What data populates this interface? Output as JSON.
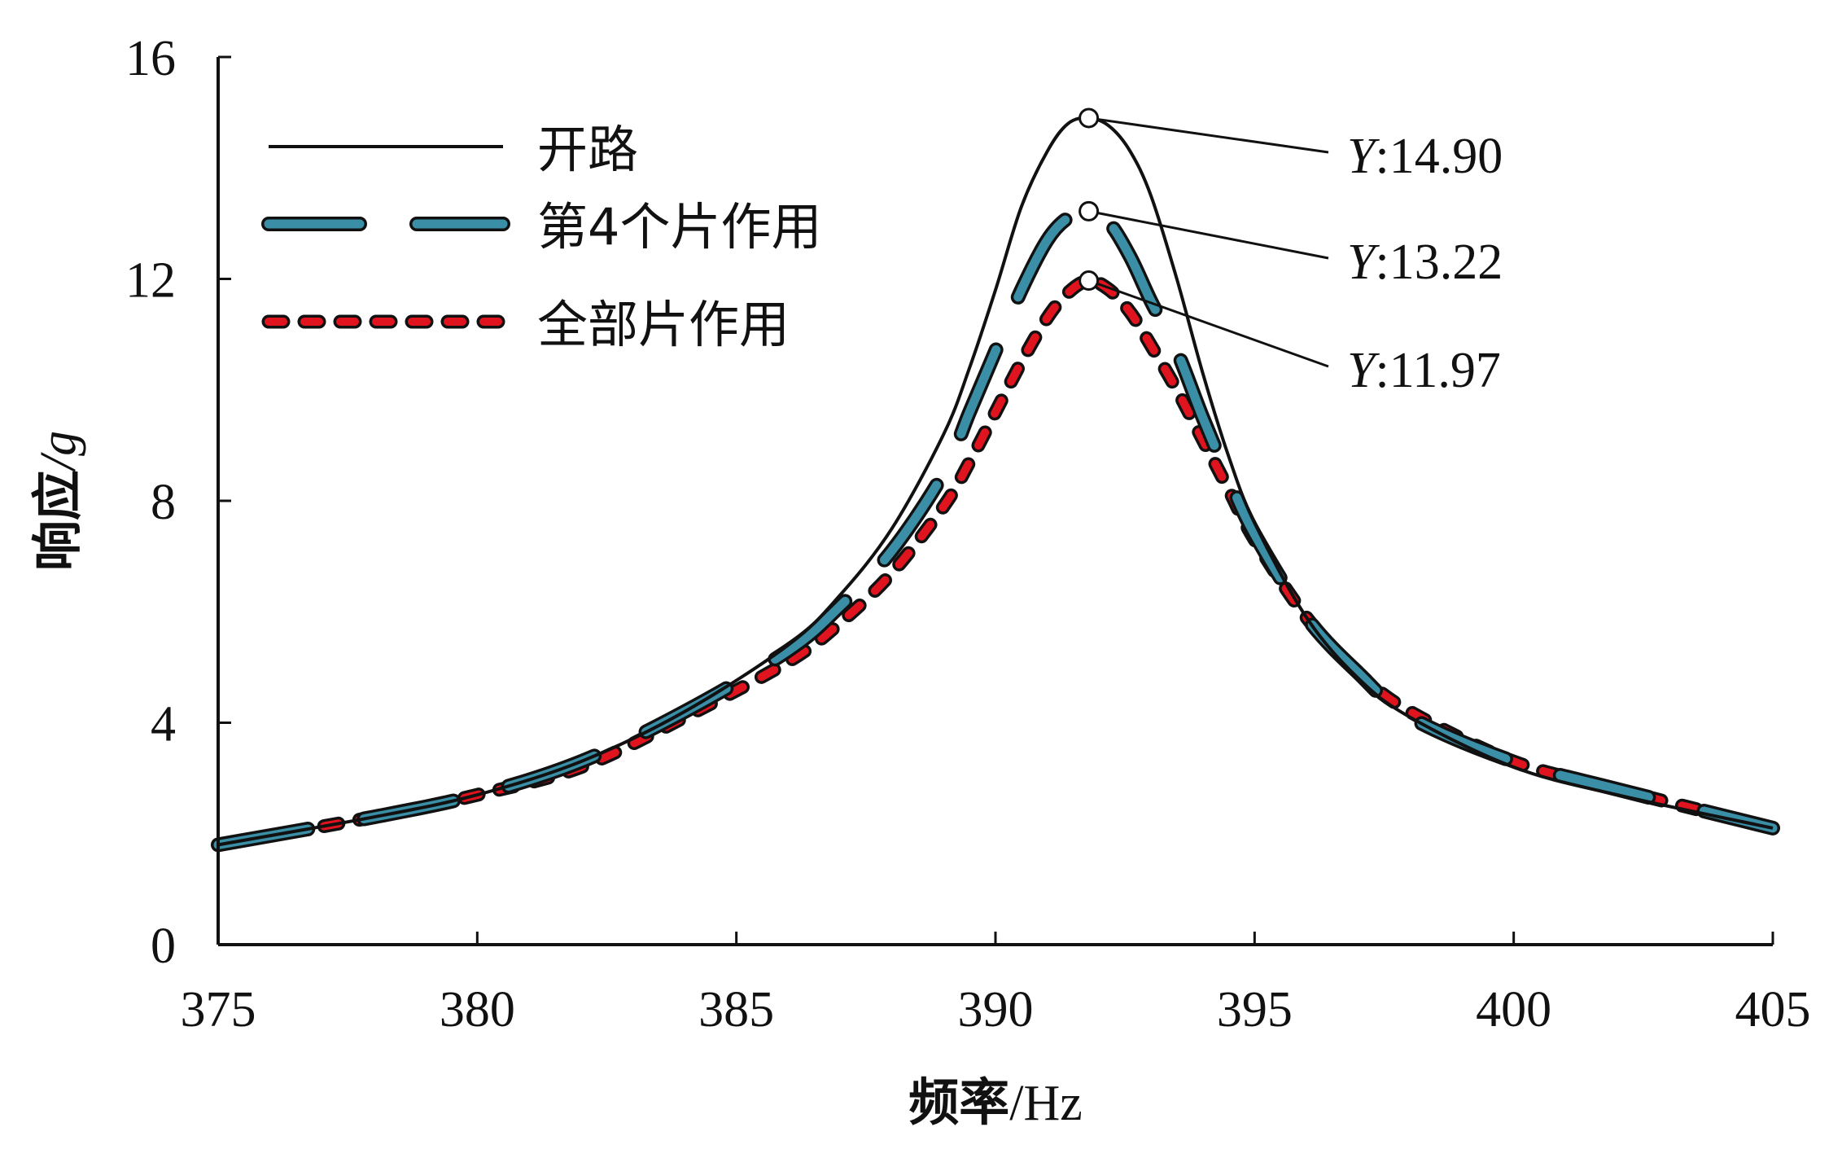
{
  "chart_data": {
    "type": "line",
    "xlabel": {
      "main": "频率",
      "unit": "/Hz"
    },
    "ylabel": {
      "main": "响应",
      "unit": "/g"
    },
    "xlim": [
      375,
      405
    ],
    "ylim": [
      0,
      16
    ],
    "xticks": [
      "375",
      "380",
      "385",
      "390",
      "395",
      "400",
      "405"
    ],
    "yticks": [
      "0",
      "4",
      "8",
      "12",
      "16"
    ],
    "grid": false,
    "legend_position": "top-left",
    "series": [
      {
        "name": "开路",
        "style": "solid-thin",
        "color": "#111111",
        "x": [
          375,
          378,
          380,
          382,
          384,
          386,
          387,
          388,
          389,
          389.5,
          390,
          390.5,
          391,
          391.4,
          391.8,
          392.2,
          392.6,
          393,
          393.5,
          394,
          394.5,
          395,
          396,
          397,
          398,
          400,
          402,
          405
        ],
        "y": [
          1.8,
          2.3,
          2.7,
          3.3,
          4.2,
          5.4,
          6.3,
          7.5,
          9.2,
          10.4,
          11.8,
          13.3,
          14.3,
          14.8,
          14.9,
          14.75,
          14.3,
          13.5,
          12.0,
          10.3,
          8.8,
          7.6,
          5.9,
          4.8,
          4.1,
          3.2,
          2.7,
          2.1
        ]
      },
      {
        "name": "第4个片作用",
        "style": "long-dash",
        "color": "#3a8ea5",
        "x": [
          375,
          378,
          380,
          382,
          384,
          386,
          387,
          388,
          389,
          389.5,
          390,
          390.5,
          391,
          391.4,
          391.8,
          392.2,
          392.6,
          393,
          393.5,
          394,
          394.5,
          395,
          396,
          397,
          398,
          400,
          402,
          405
        ],
        "y": [
          1.8,
          2.3,
          2.7,
          3.3,
          4.2,
          5.3,
          6.1,
          7.1,
          8.5,
          9.6,
          10.7,
          11.8,
          12.7,
          13.1,
          13.22,
          13.0,
          12.4,
          11.6,
          10.7,
          9.5,
          8.4,
          7.4,
          5.9,
          4.9,
          4.1,
          3.3,
          2.8,
          2.1
        ]
      },
      {
        "name": "全部片作用",
        "style": "short-dash",
        "color": "#e0141e",
        "x": [
          375,
          378,
          380,
          382,
          384,
          386,
          387,
          388,
          389,
          389.5,
          390,
          390.5,
          391,
          391.4,
          391.8,
          392.2,
          392.6,
          393,
          393.5,
          394,
          394.5,
          395,
          396,
          397,
          398,
          400,
          402,
          405
        ],
        "y": [
          1.8,
          2.3,
          2.7,
          3.2,
          4.1,
          5.1,
          5.8,
          6.7,
          7.9,
          8.7,
          9.6,
          10.5,
          11.3,
          11.75,
          11.97,
          11.8,
          11.4,
          10.8,
          10.0,
          9.1,
          8.2,
          7.3,
          5.9,
          4.9,
          4.2,
          3.3,
          2.8,
          2.1
        ]
      }
    ],
    "annotations": [
      {
        "series": 0,
        "x": 391.8,
        "y": 14.9,
        "text": "Y:14.90",
        "prefix": "Y",
        "value": ":14.90"
      },
      {
        "series": 1,
        "x": 391.8,
        "y": 13.22,
        "text": "Y:13.22",
        "prefix": "Y",
        "value": ":13.22"
      },
      {
        "series": 2,
        "x": 391.8,
        "y": 11.97,
        "text": "Y:11.97",
        "prefix": "Y",
        "value": ":11.97"
      }
    ]
  }
}
